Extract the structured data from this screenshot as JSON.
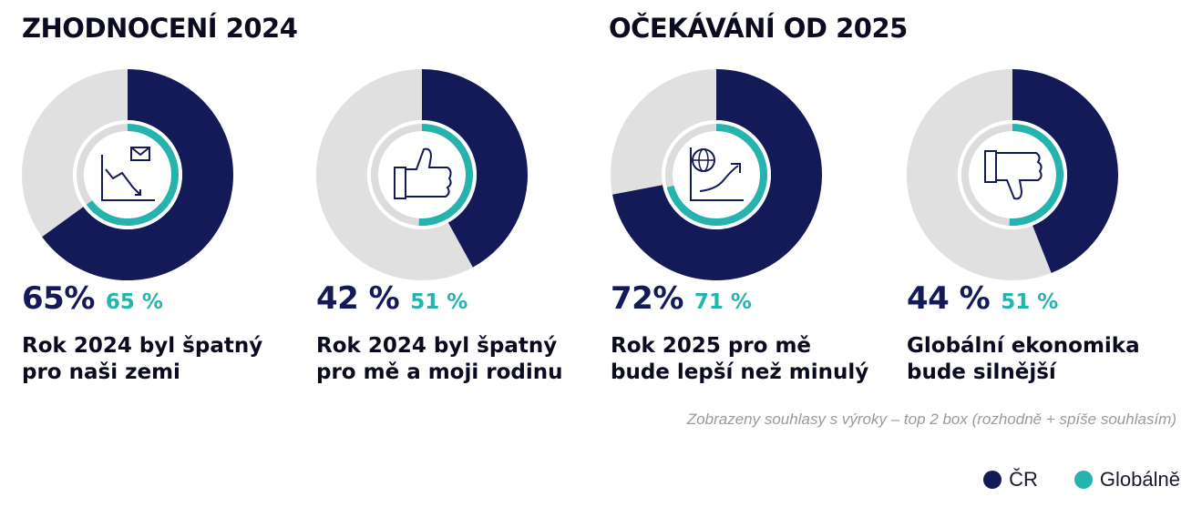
{
  "sections": {
    "left_title": "ZHODNOCENÍ 2024",
    "right_title": "OČEKÁVÁNÍ OD 2025"
  },
  "colors": {
    "cr": "#141a57",
    "global": "#24b3ad",
    "track": "#e0e0e0",
    "inner_track": "#dcdcdc"
  },
  "chart_data": [
    {
      "type": "pie",
      "section": "ZHODNOCENÍ 2024",
      "caption": "Rok 2024 byl špatný\npro naši zemi",
      "icon": "chart-decline-icon",
      "series": [
        {
          "name": "ČR",
          "value": 65,
          "label": "65%"
        },
        {
          "name": "Globálně",
          "value": 65,
          "label": "65 %"
        }
      ]
    },
    {
      "type": "pie",
      "section": "ZHODNOCENÍ 2024",
      "caption": "Rok 2024 byl špatný\npro mě a moji rodinu",
      "icon": "thumbs-up-icon",
      "series": [
        {
          "name": "ČR",
          "value": 42,
          "label": "42 %"
        },
        {
          "name": "Globálně",
          "value": 51,
          "label": "51 %"
        }
      ]
    },
    {
      "type": "pie",
      "section": "OČEKÁVÁNÍ OD 2025",
      "caption": "Rok 2025 pro mě\nbude lepší než minulý",
      "icon": "globe-growth-icon",
      "series": [
        {
          "name": "ČR",
          "value": 72,
          "label": "72%"
        },
        {
          "name": "Globálně",
          "value": 71,
          "label": "71 %"
        }
      ]
    },
    {
      "type": "pie",
      "section": "OČEKÁVÁNÍ OD 2025",
      "caption": "Globální ekonomika\nbude silnější",
      "icon": "thumbs-down-icon",
      "series": [
        {
          "name": "ČR",
          "value": 44,
          "label": "44 %"
        },
        {
          "name": "Globálně",
          "value": 51,
          "label": "51 %"
        }
      ]
    }
  ],
  "note": "Zobrazeny souhlasy s výroky – top 2 box (rozhodně + spíše souhlasím)",
  "legend": [
    {
      "label": "ČR",
      "color": "#141a57"
    },
    {
      "label": "Globálně",
      "color": "#24b3ad"
    }
  ]
}
